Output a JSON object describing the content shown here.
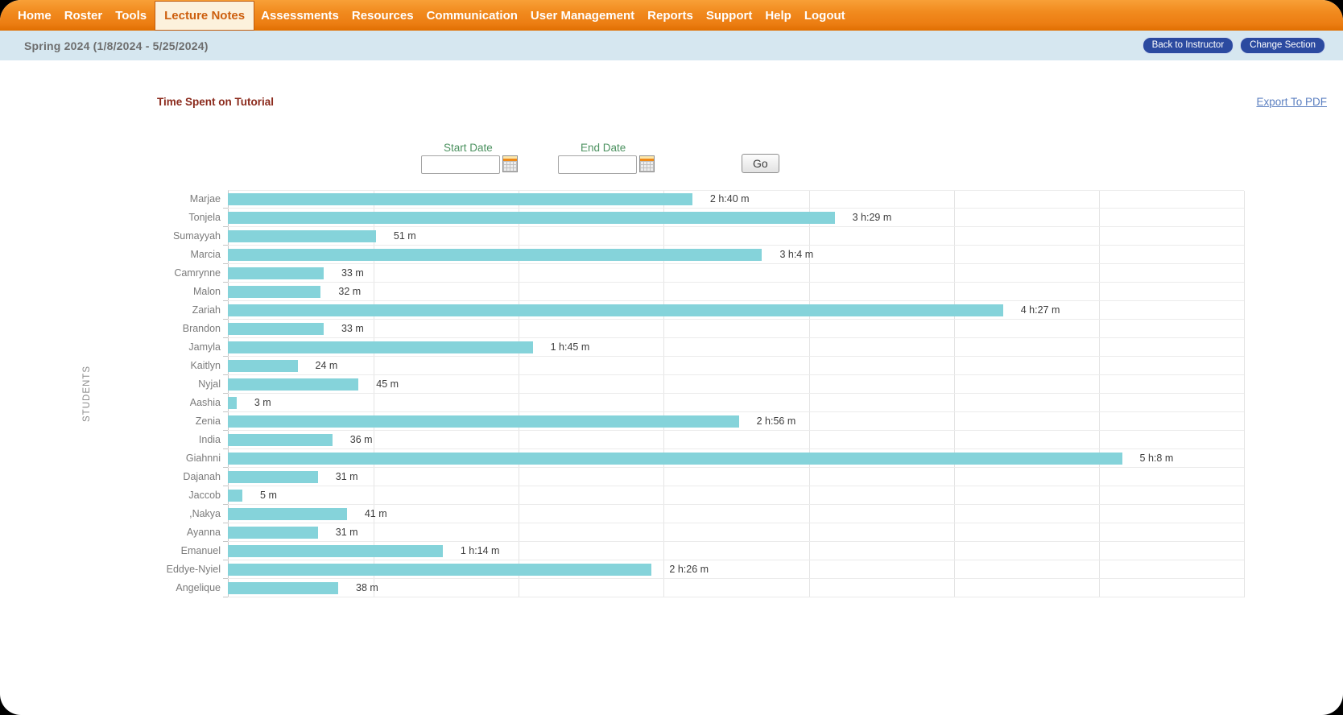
{
  "nav": {
    "items": [
      "Home",
      "Roster",
      "Tools",
      "Lecture Notes",
      "Assessments",
      "Resources",
      "Communication",
      "User Management",
      "Reports",
      "Support",
      "Help",
      "Logout"
    ],
    "active_item": "Lecture Notes"
  },
  "subheader": {
    "term": "Spring 2024 (1/8/2024 - 5/25/2024)",
    "back_button": "Back to Instructor",
    "change_button": "Change Section"
  },
  "content": {
    "title": "Time Spent on Tutorial",
    "export_link": "Export To PDF",
    "filters": {
      "start_date_label": "Start Date",
      "end_date_label": "End Date",
      "start_date_value": "",
      "end_date_value": "",
      "go_button": "Go"
    }
  },
  "chart_data": {
    "type": "bar",
    "orientation": "horizontal",
    "title": "Time Spent on Tutorial",
    "ylabel": "STUDENTS",
    "xlabel": "",
    "xlim_minutes": [
      0,
      350
    ],
    "gridline_interval_minutes": 50,
    "grid": true,
    "legend": false,
    "bar_color": "#85d3da",
    "categories": [
      "Marjae",
      "Tonjela",
      "Sumayyah",
      "Marcia",
      "Camrynne",
      "Malon",
      "Zariah",
      "Brandon",
      "Jamyla",
      "Kaitlyn",
      "Nyjal",
      "Aashia",
      "Zenia",
      "India",
      "Giahnni",
      "Dajanah",
      "Jaccob",
      ",Nakya",
      "Ayanna",
      "Emanuel",
      "Eddye-Nyiel",
      "Angelique"
    ],
    "values_minutes": [
      160,
      209,
      51,
      184,
      33,
      32,
      267,
      33,
      105,
      24,
      45,
      3,
      176,
      36,
      308,
      31,
      5,
      41,
      31,
      74,
      146,
      38
    ],
    "value_labels": [
      "2 h:40 m",
      "3 h:29 m",
      "51 m",
      "3 h:4 m",
      "33 m",
      "32 m",
      "4 h:27 m",
      "33 m",
      "1 h:45 m",
      "24 m",
      "45 m",
      "3 m",
      "2 h:56 m",
      "36 m",
      "5 h:8 m",
      "31 m",
      "5 m",
      "41 m",
      "31 m",
      "1 h:14 m",
      "2 h:26 m",
      "38 m"
    ]
  },
  "colors": {
    "nav_orange": "#ee7f1f",
    "nav_active_bg": "#fcf1dc",
    "nav_active_text": "#cd5f0e",
    "subheader_bg": "#d6e7f0",
    "button_blue": "#2b4aa0",
    "title_maroon": "#8b2a1c",
    "link_blue": "#5b7fc0",
    "date_label_green": "#4c9260",
    "bar_teal": "#85d3da"
  }
}
